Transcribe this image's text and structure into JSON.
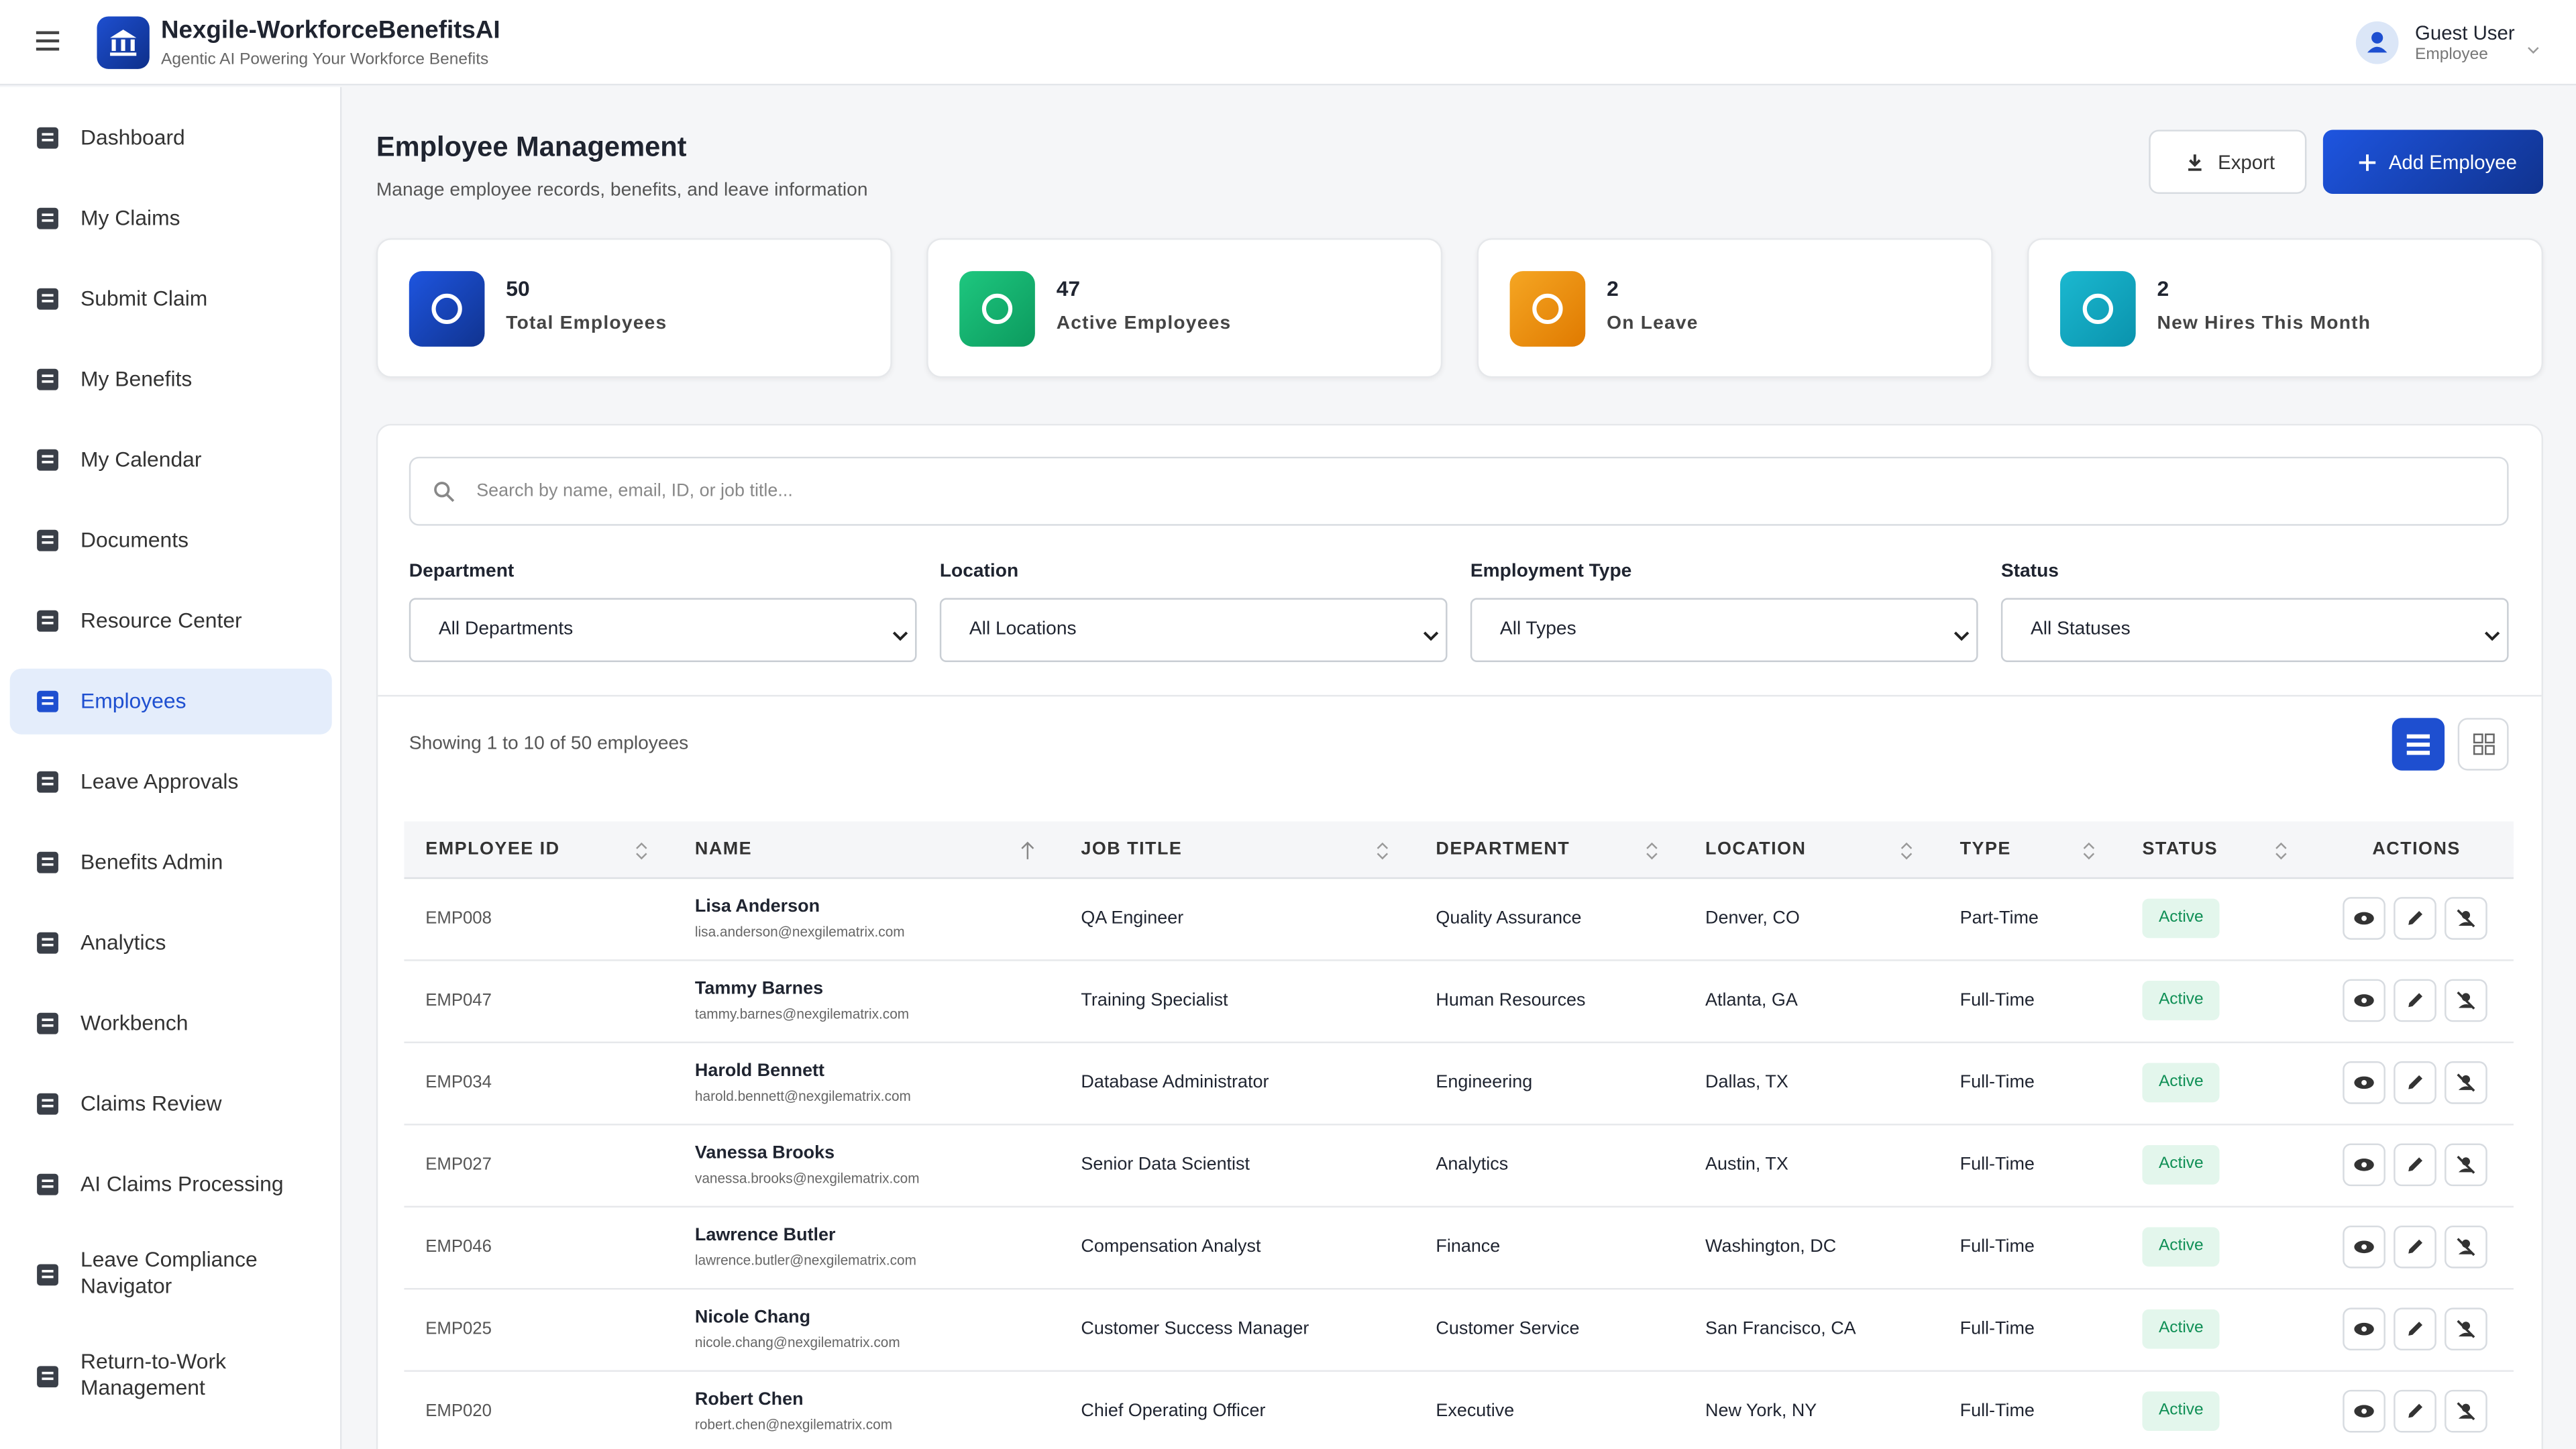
{
  "header": {
    "app_name": "Nexgile-WorkforceBenefitsAI",
    "tagline": "Agentic AI Powering Your Workforce Benefits",
    "user_name": "Guest User",
    "user_role": "Employee"
  },
  "sidebar": {
    "items": [
      "Dashboard",
      "My Claims",
      "Submit Claim",
      "My Benefits",
      "My Calendar",
      "Documents",
      "Resource Center",
      "Employees",
      "Leave Approvals",
      "Benefits Admin",
      "Analytics",
      "Workbench",
      "Claims Review",
      "AI Claims Processing",
      "Leave Compliance Navigator",
      "Return-to-Work Management"
    ],
    "active": "Employees"
  },
  "page": {
    "title": "Employee Management",
    "subtitle": "Manage employee records, benefits, and leave information",
    "buttons": [
      "Export",
      "Add Employee"
    ]
  },
  "stats": [
    {
      "value": 50,
      "label": "Total Employees"
    },
    {
      "value": 47,
      "label": "Active Employees"
    },
    {
      "value": 2,
      "label": "On Leave"
    },
    {
      "value": 2,
      "label": "New Hires This Month"
    }
  ],
  "filters": {
    "search_placeholder": "Search by name, email, ID, or job title...",
    "fields": [
      {
        "label": "Department",
        "selected": "All Departments"
      },
      {
        "label": "Location",
        "selected": "All Locations"
      },
      {
        "label": "Employment Type",
        "selected": "All Types"
      },
      {
        "label": "Status",
        "selected": "All Statuses"
      }
    ]
  },
  "table": {
    "summary": "Showing 1 to 10 of 50 employees",
    "columns": [
      "EMPLOYEE ID",
      "NAME",
      "JOB TITLE",
      "DEPARTMENT",
      "LOCATION",
      "TYPE",
      "STATUS",
      "ACTIONS"
    ],
    "rows": [
      [
        "EMP008",
        "Lisa Anderson",
        "lisa.anderson@nexgilematrix.com",
        "QA Engineer",
        "Quality Assurance",
        "Denver, CO",
        "Part-Time",
        "Active"
      ],
      [
        "EMP047",
        "Tammy Barnes",
        "tammy.barnes@nexgilematrix.com",
        "Training Specialist",
        "Human Resources",
        "Atlanta, GA",
        "Full-Time",
        "Active"
      ],
      [
        "EMP034",
        "Harold Bennett",
        "harold.bennett@nexgilematrix.com",
        "Database Administrator",
        "Engineering",
        "Dallas, TX",
        "Full-Time",
        "Active"
      ],
      [
        "EMP027",
        "Vanessa Brooks",
        "vanessa.brooks@nexgilematrix.com",
        "Senior Data Scientist",
        "Analytics",
        "Austin, TX",
        "Full-Time",
        "Active"
      ],
      [
        "EMP046",
        "Lawrence Butler",
        "lawrence.butler@nexgilematrix.com",
        "Compensation Analyst",
        "Finance",
        "Washington, DC",
        "Full-Time",
        "Active"
      ],
      [
        "EMP025",
        "Nicole Chang",
        "nicole.chang@nexgilematrix.com",
        "Customer Success Manager",
        "Customer Service",
        "San Francisco, CA",
        "Full-Time",
        "Active"
      ],
      [
        "EMP020",
        "Robert Chen",
        "robert.chen@nexgilematrix.com",
        "Chief Operating Officer",
        "Executive",
        "New York, NY",
        "Full-Time",
        "Active"
      ]
    ]
  }
}
